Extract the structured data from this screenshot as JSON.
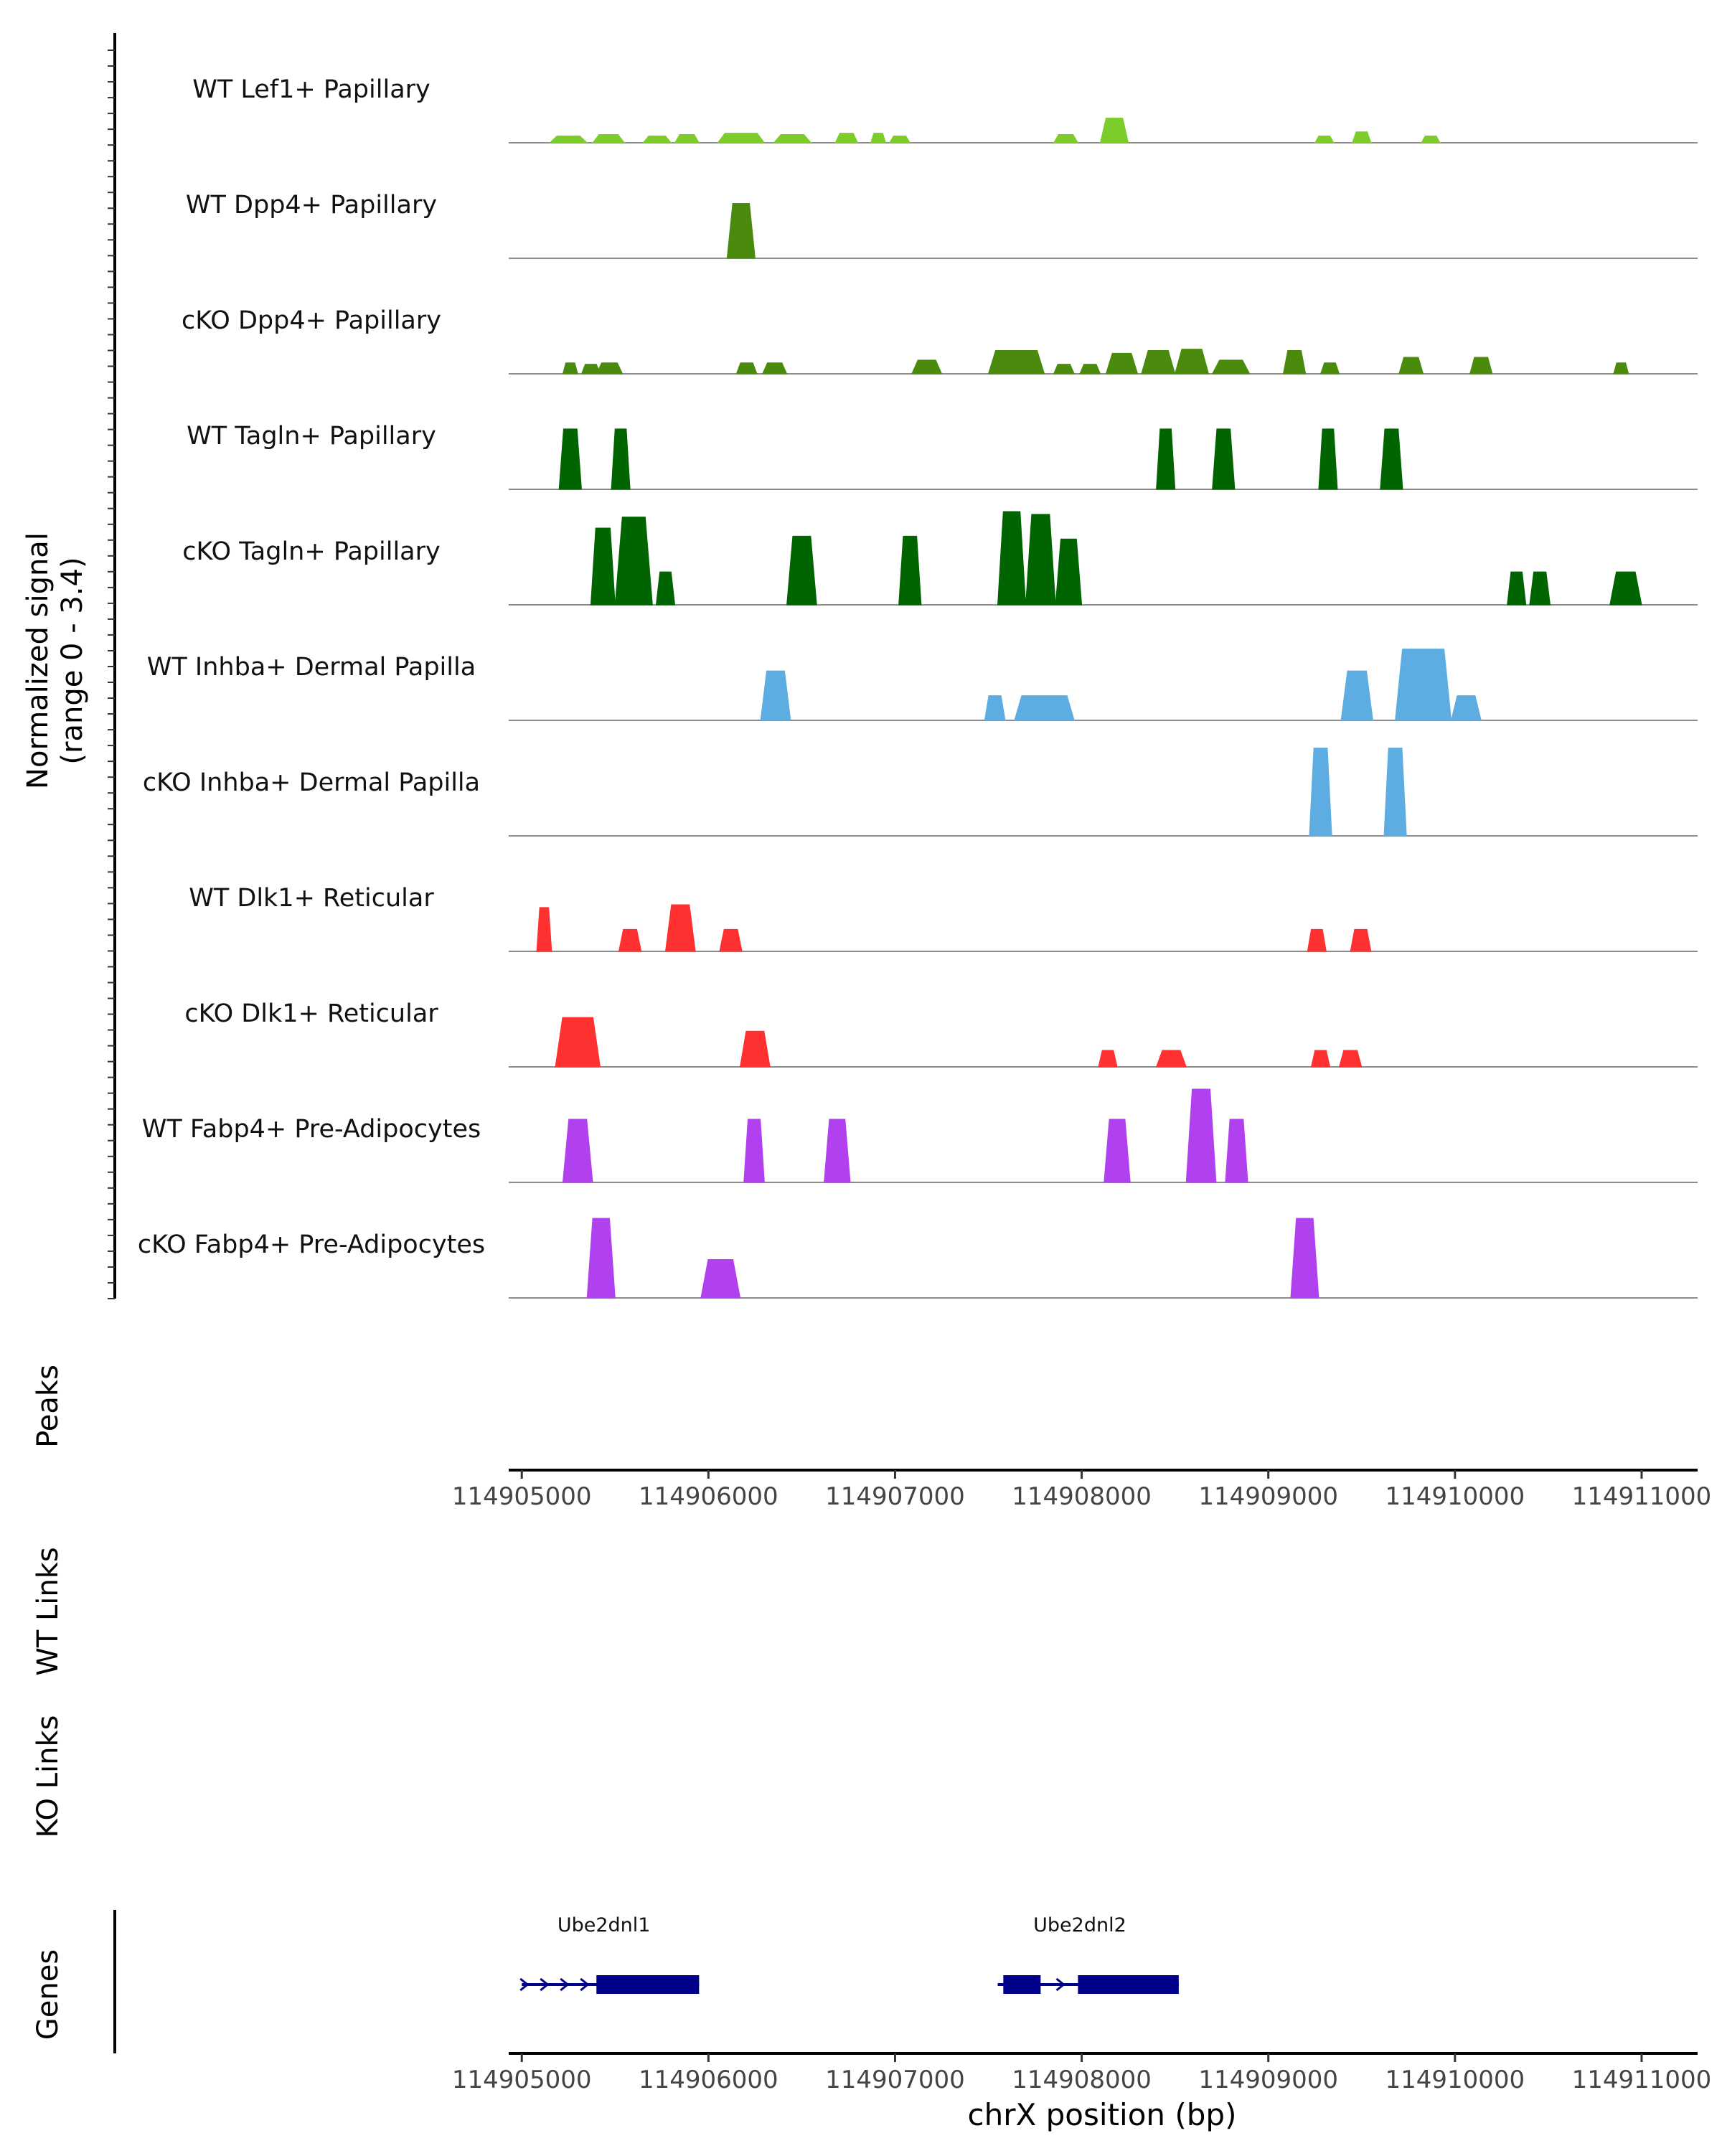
{
  "chart_data": {
    "type": "area",
    "title": "",
    "xlabel": "chrX position (bp)",
    "ylabel": "Normalized signal\n(range 0 - 3.4)",
    "ylim": [
      0,
      3.4
    ],
    "xlim": [
      114904930,
      114911300
    ],
    "x_ticks": [
      114905000,
      114906000,
      114907000,
      114908000,
      114909000,
      114910000,
      114911000
    ],
    "x_tick_labels": [
      "114905000",
      "114906000",
      "114907000",
      "114908000",
      "114909000",
      "114910000",
      "114911000"
    ],
    "track_labels": {
      "peaks": "Peaks",
      "wt_links": "WT Links",
      "ko_links": "KO Links",
      "genes": "Genes"
    },
    "series": [
      {
        "name": "WT Lef1+ Papillary",
        "color": "#7CCD2C",
        "peaks": [
          [
            114905150,
            114905350,
            0.25
          ],
          [
            114905380,
            114905550,
            0.3
          ],
          [
            114905650,
            114905800,
            0.25
          ],
          [
            114905820,
            114905950,
            0.3
          ],
          [
            114906050,
            114906300,
            0.35
          ],
          [
            114906350,
            114906550,
            0.3
          ],
          [
            114906680,
            114906800,
            0.35
          ],
          [
            114906870,
            114906950,
            0.35
          ],
          [
            114906970,
            114907080,
            0.25
          ],
          [
            114907850,
            114907980,
            0.3
          ],
          [
            114908100,
            114908250,
            0.9
          ],
          [
            114909250,
            114909350,
            0.25
          ],
          [
            114909450,
            114909550,
            0.4
          ],
          [
            114909820,
            114909920,
            0.25
          ]
        ]
      },
      {
        "name": "WT Dpp4+ Papillary",
        "color": "#4A8A0C",
        "peaks": [
          [
            114906100,
            114906250,
            2.0
          ]
        ]
      },
      {
        "name": "cKO Dpp4+ Papillary",
        "color": "#4A8A0C",
        "peaks": [
          [
            114905220,
            114905300,
            0.4
          ],
          [
            114905320,
            114905420,
            0.35
          ],
          [
            114905400,
            114905540,
            0.4
          ],
          [
            114906150,
            114906260,
            0.4
          ],
          [
            114906290,
            114906420,
            0.4
          ],
          [
            114907090,
            114907250,
            0.5
          ],
          [
            114907500,
            114907800,
            0.85
          ],
          [
            114907850,
            114907960,
            0.35
          ],
          [
            114907990,
            114908100,
            0.35
          ],
          [
            114908130,
            114908300,
            0.75
          ],
          [
            114908320,
            114908500,
            0.85
          ],
          [
            114908500,
            114908680,
            0.9
          ],
          [
            114908700,
            114908900,
            0.5
          ],
          [
            114909080,
            114909200,
            0.85
          ],
          [
            114909280,
            114909380,
            0.4
          ],
          [
            114909700,
            114909830,
            0.6
          ],
          [
            114910080,
            114910200,
            0.6
          ],
          [
            114910850,
            114910930,
            0.4
          ]
        ]
      },
      {
        "name": "WT Tagln+ Papillary",
        "color": "#006400",
        "peaks": [
          [
            114905200,
            114905320,
            2.2
          ],
          [
            114905480,
            114905580,
            2.2
          ],
          [
            114908400,
            114908500,
            2.2
          ],
          [
            114908700,
            114908820,
            2.2
          ],
          [
            114909270,
            114909370,
            2.2
          ],
          [
            114909600,
            114909720,
            2.2
          ]
        ]
      },
      {
        "name": "cKO Tagln+ Papillary",
        "color": "#006400",
        "peaks": [
          [
            114905370,
            114905500,
            2.8
          ],
          [
            114905500,
            114905700,
            3.2
          ],
          [
            114905720,
            114905820,
            1.2
          ],
          [
            114906420,
            114906580,
            2.5
          ],
          [
            114907020,
            114907140,
            2.5
          ],
          [
            114907550,
            114907700,
            3.4
          ],
          [
            114907700,
            114907860,
            3.3
          ],
          [
            114907860,
            114908000,
            2.4
          ],
          [
            114910280,
            114910380,
            1.2
          ],
          [
            114910400,
            114910510,
            1.2
          ],
          [
            114910830,
            114911000,
            1.2
          ]
        ]
      },
      {
        "name": "WT Inhba+ Dermal Papilla",
        "color": "#5DADE2",
        "peaks": [
          [
            114906280,
            114906440,
            1.8
          ],
          [
            114907480,
            114907590,
            0.9
          ],
          [
            114907640,
            114907960,
            0.9
          ],
          [
            114909390,
            114909560,
            1.8
          ],
          [
            114909680,
            114909980,
            2.6
          ],
          [
            114909980,
            114910140,
            0.9
          ]
        ]
      },
      {
        "name": "cKO Inhba+ Dermal Papilla",
        "color": "#5DADE2",
        "peaks": [
          [
            114909220,
            114909340,
            3.2
          ],
          [
            114909620,
            114909740,
            3.2
          ]
        ]
      },
      {
        "name": "WT Dlk1+ Reticular",
        "color": "#FF3030",
        "peaks": [
          [
            114905080,
            114905160,
            1.6
          ],
          [
            114905520,
            114905640,
            0.8
          ],
          [
            114905770,
            114905930,
            1.7
          ],
          [
            114906060,
            114906180,
            0.8
          ],
          [
            114909210,
            114909310,
            0.8
          ],
          [
            114909440,
            114909550,
            0.8
          ]
        ]
      },
      {
        "name": "cKO Dlk1+ Reticular",
        "color": "#FF3030",
        "peaks": [
          [
            114905180,
            114905420,
            1.8
          ],
          [
            114906170,
            114906330,
            1.3
          ],
          [
            114908090,
            114908190,
            0.6
          ],
          [
            114908400,
            114908560,
            0.6
          ],
          [
            114909230,
            114909330,
            0.6
          ],
          [
            114909380,
            114909500,
            0.6
          ]
        ]
      },
      {
        "name": "WT Fabp4+ Pre-Adipocytes",
        "color": "#B140EE",
        "peaks": [
          [
            114905220,
            114905380,
            2.3
          ],
          [
            114906190,
            114906300,
            2.3
          ],
          [
            114906620,
            114906760,
            2.3
          ],
          [
            114908120,
            114908260,
            2.3
          ],
          [
            114908560,
            114908720,
            3.4
          ],
          [
            114908770,
            114908890,
            2.3
          ]
        ]
      },
      {
        "name": "cKO Fabp4+ Pre-Adipocytes",
        "color": "#B140EE",
        "peaks": [
          [
            114905350,
            114905500,
            2.9
          ],
          [
            114905960,
            114906170,
            1.4
          ],
          [
            114909120,
            114909270,
            2.9
          ]
        ]
      }
    ],
    "genes": [
      {
        "name": "Ube2dnl1",
        "strand": "+",
        "start": 114905000,
        "end": 114905950,
        "exons": [
          [
            114905400,
            114905950
          ]
        ]
      },
      {
        "name": "Ube2dnl2",
        "strand": "+",
        "start": 114907550,
        "end": 114908520,
        "exons": [
          [
            114907580,
            114907780
          ],
          [
            114907980,
            114908520
          ]
        ]
      }
    ]
  }
}
